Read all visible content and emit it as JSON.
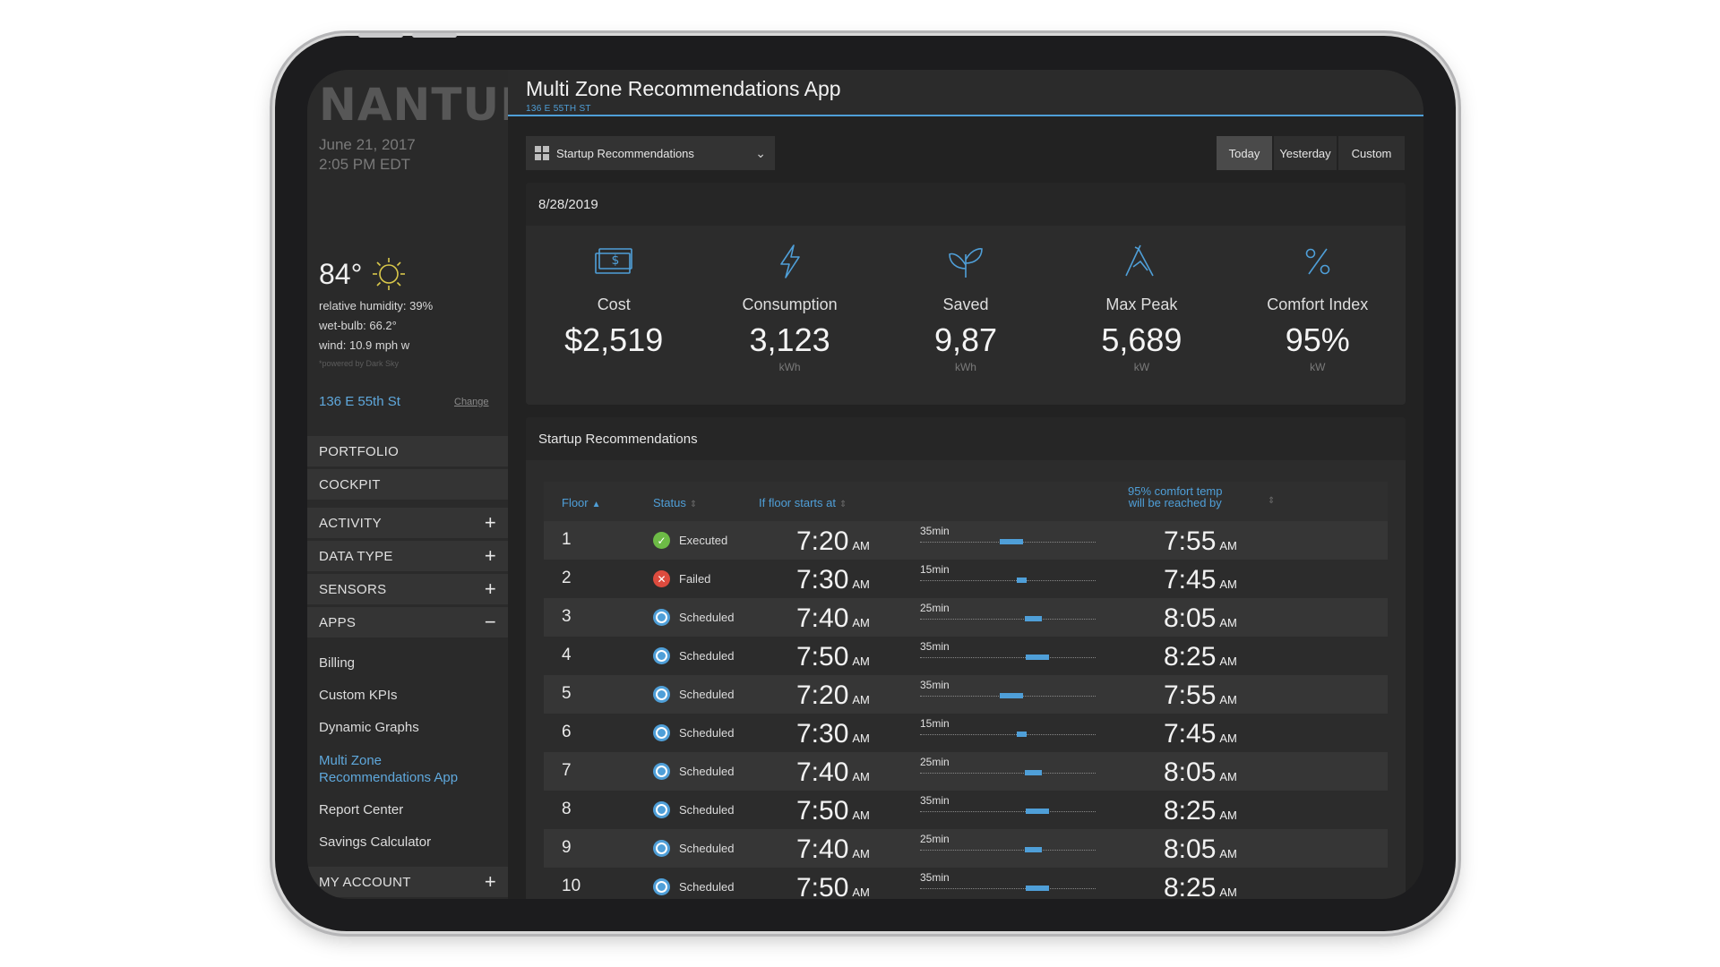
{
  "sidebar": {
    "logo": "NANTUM",
    "date": "June 21, 2017",
    "time": "2:05 PM EDT",
    "temperature": "84°",
    "humidity": "relative humidity: 39%",
    "wet_bulb": "wet-bulb: 66.2°",
    "wind": "wind: 10.9 mph w",
    "powered_by": "*powered by Dark Sky",
    "address": "136 E 55th St",
    "change_label": "Change",
    "menu": {
      "portfolio": "PORTFOLIO",
      "cockpit": "COCKPIT",
      "activity": "ACTIVITY",
      "data_type": "DATA TYPE",
      "sensors": "SENSORS",
      "apps": "APPS",
      "my_account": "MY ACCOUNT",
      "plus": "+",
      "minus": "−"
    },
    "apps": {
      "billing": "Billing",
      "custom_kpis": "Custom KPIs",
      "dynamic_graphs": "Dynamic Graphs",
      "multi_zone_1": "Multi Zone",
      "multi_zone_2": "Recommendations App",
      "report_center": "Report Center",
      "savings_calculator": "Savings Calculator"
    }
  },
  "header": {
    "title": "Multi Zone Recommendations App",
    "subtitle": "136 E 55TH ST"
  },
  "toolbar": {
    "dropdown_value": "Startup Recommendations",
    "ranges": {
      "today": "Today",
      "yesterday": "Yesterday",
      "custom": "Custom"
    },
    "selected_range": "Today"
  },
  "summary": {
    "date": "8/28/2019",
    "kpis": [
      {
        "label": "Cost",
        "value": "$2,519",
        "unit": "",
        "icon": "money-icon"
      },
      {
        "label": "Consumption",
        "value": "3,123",
        "unit": "kWh",
        "icon": "lightning-icon"
      },
      {
        "label": "Saved",
        "value": "9,87",
        "unit": "kWh",
        "icon": "leaf-icon"
      },
      {
        "label": "Max Peak",
        "value": "5,689",
        "unit": "kW",
        "icon": "peak-icon"
      },
      {
        "label": "Comfort Index",
        "value": "95%",
        "unit": "kW",
        "icon": "percent-icon"
      }
    ]
  },
  "recommendations": {
    "title": "Startup Recommendations",
    "columns": {
      "floor": "Floor",
      "status": "Status",
      "start": "If floor starts at",
      "reach_1": "95% comfort temp",
      "reach_2": "will be reached by"
    },
    "am": "AM",
    "rows": [
      {
        "floor": "1",
        "status": "Executed",
        "state": "ok",
        "start": "7:20",
        "duration": "35min",
        "minutes": 35,
        "offset": 0.52,
        "end": "7:55"
      },
      {
        "floor": "2",
        "status": "Failed",
        "state": "fail",
        "start": "7:30",
        "duration": "15min",
        "minutes": 15,
        "offset": 0.58,
        "end": "7:45"
      },
      {
        "floor": "3",
        "status": "Scheduled",
        "state": "sched",
        "start": "7:40",
        "duration": "25min",
        "minutes": 25,
        "offset": 0.65,
        "end": "8:05"
      },
      {
        "floor": "4",
        "status": "Scheduled",
        "state": "sched",
        "start": "7:50",
        "duration": "35min",
        "minutes": 35,
        "offset": 0.67,
        "end": "8:25"
      },
      {
        "floor": "5",
        "status": "Scheduled",
        "state": "sched",
        "start": "7:20",
        "duration": "35min",
        "minutes": 35,
        "offset": 0.52,
        "end": "7:55"
      },
      {
        "floor": "6",
        "status": "Scheduled",
        "state": "sched",
        "start": "7:30",
        "duration": "15min",
        "minutes": 15,
        "offset": 0.58,
        "end": "7:45"
      },
      {
        "floor": "7",
        "status": "Scheduled",
        "state": "sched",
        "start": "7:40",
        "duration": "25min",
        "minutes": 25,
        "offset": 0.65,
        "end": "8:05"
      },
      {
        "floor": "8",
        "status": "Scheduled",
        "state": "sched",
        "start": "7:50",
        "duration": "35min",
        "minutes": 35,
        "offset": 0.67,
        "end": "8:25"
      },
      {
        "floor": "9",
        "status": "Scheduled",
        "state": "sched",
        "start": "7:40",
        "duration": "25min",
        "minutes": 25,
        "offset": 0.65,
        "end": "8:05"
      },
      {
        "floor": "10",
        "status": "Scheduled",
        "state": "sched",
        "start": "7:50",
        "duration": "35min",
        "minutes": 35,
        "offset": 0.67,
        "end": "8:25"
      }
    ]
  },
  "colors": {
    "accent": "#4f9fd8",
    "success": "#6dbb46",
    "danger": "#dd4b3e",
    "background": "#222222"
  }
}
